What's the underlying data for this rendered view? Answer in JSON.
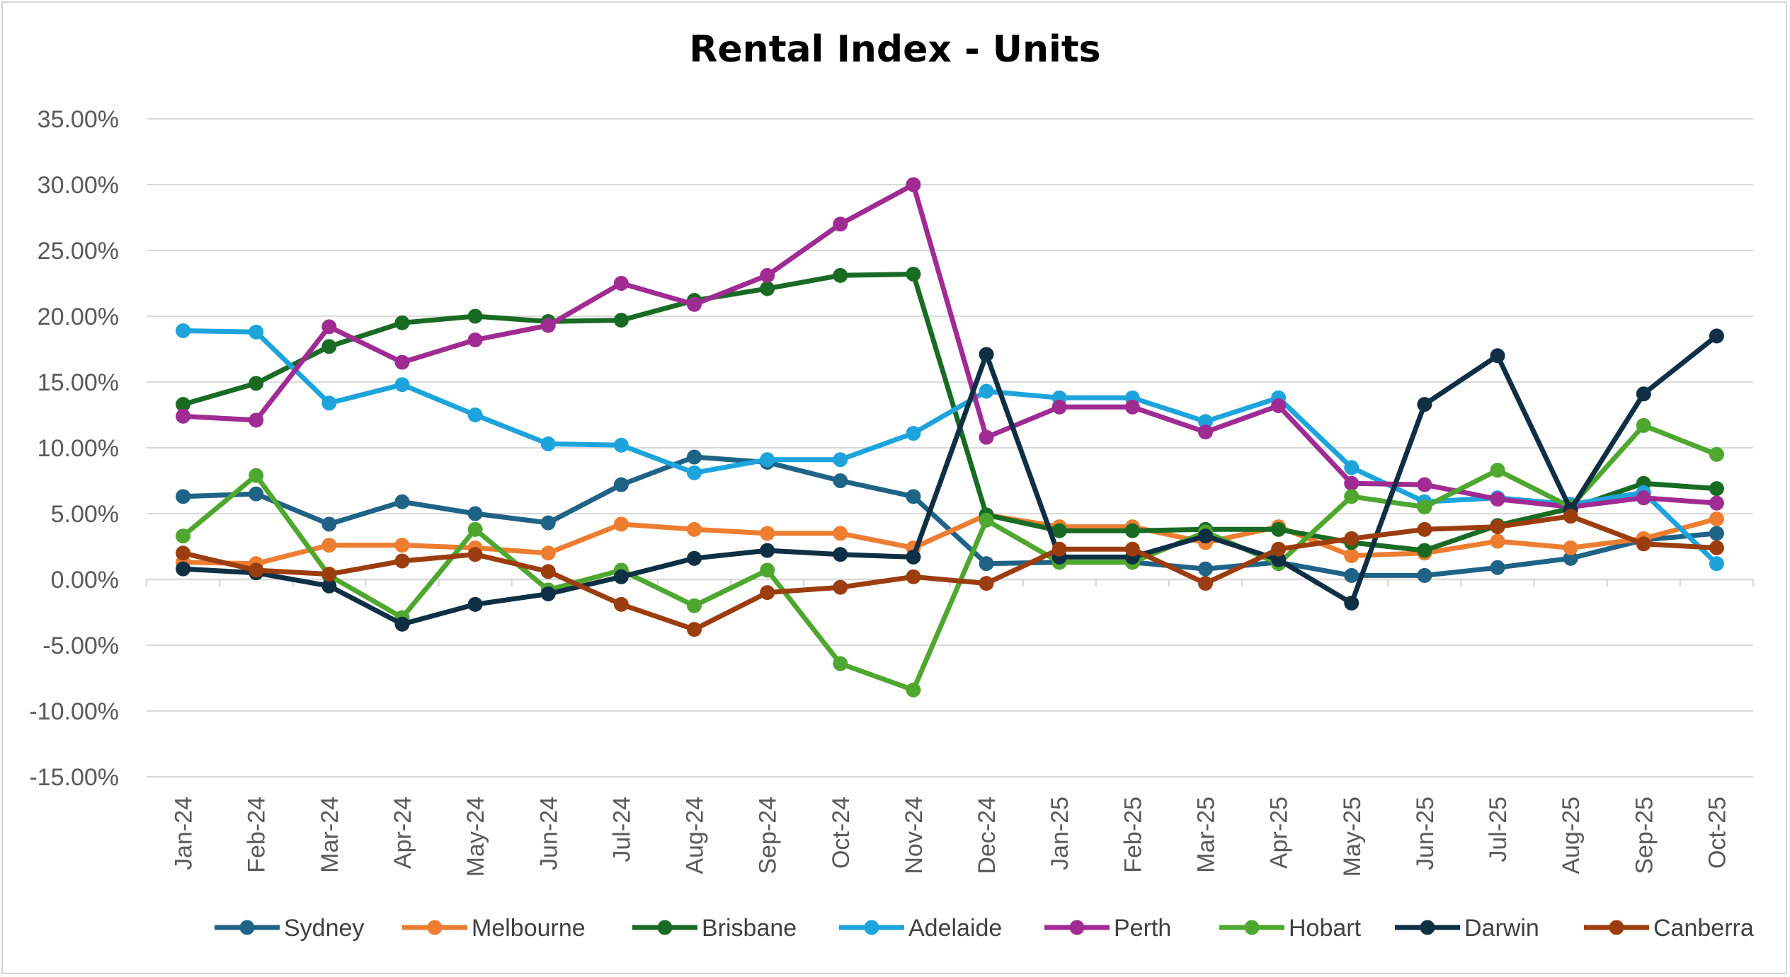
{
  "chart_data": {
    "type": "line",
    "title": "Rental Index - Units",
    "xlabel": "",
    "ylabel": "",
    "ylim": [
      -0.15,
      0.35
    ],
    "ytick_step": 0.05,
    "ytick_labels": [
      "-15.00%",
      "-10.00%",
      "-5.00%",
      "0.00%",
      "5.00%",
      "10.00%",
      "15.00%",
      "20.00%",
      "25.00%",
      "30.00%",
      "35.00%"
    ],
    "grid": true,
    "legend_position": "bottom",
    "categories": [
      "Jan-24",
      "Feb-24",
      "Mar-24",
      "Apr-24",
      "May-24",
      "Jun-24",
      "Jul-24",
      "Aug-24",
      "Sep-24",
      "Oct-24",
      "Nov-24",
      "Dec-24",
      "Jan-25",
      "Feb-25",
      "Mar-25",
      "Apr-25",
      "May-25",
      "Jun-25",
      "Jul-25",
      "Aug-25",
      "Sep-25",
      "Oct-25"
    ],
    "series": [
      {
        "name": "Sydney",
        "color": "#1f6387",
        "values": [
          0.063,
          0.065,
          0.042,
          0.059,
          0.05,
          0.043,
          0.072,
          0.093,
          0.089,
          0.075,
          0.063,
          0.012,
          0.013,
          0.013,
          0.008,
          0.013,
          0.003,
          0.003,
          0.009,
          0.016,
          0.03,
          0.035
        ]
      },
      {
        "name": "Melbourne",
        "color": "#ed7d31",
        "values": [
          0.013,
          0.012,
          0.026,
          0.026,
          0.024,
          0.02,
          0.042,
          0.038,
          0.035,
          0.035,
          0.024,
          0.049,
          0.04,
          0.04,
          0.028,
          0.04,
          0.018,
          0.02,
          0.029,
          0.024,
          0.031,
          0.046
        ]
      },
      {
        "name": "Brisbane",
        "color": "#196b24",
        "values": [
          0.133,
          0.149,
          0.177,
          0.195,
          0.2,
          0.196,
          0.197,
          0.212,
          0.221,
          0.231,
          0.232,
          0.049,
          0.037,
          0.037,
          0.038,
          0.038,
          0.028,
          0.022,
          0.041,
          0.054,
          0.073,
          0.069
        ]
      },
      {
        "name": "Adelaide",
        "color": "#1ea4dc",
        "values": [
          0.189,
          0.188,
          0.134,
          0.148,
          0.125,
          0.103,
          0.102,
          0.081,
          0.091,
          0.091,
          0.111,
          0.143,
          0.138,
          0.138,
          0.12,
          0.138,
          0.085,
          0.059,
          0.062,
          0.057,
          0.066,
          0.012
        ]
      },
      {
        "name": "Perth",
        "color": "#a02b93",
        "values": [
          0.124,
          0.121,
          0.192,
          0.165,
          0.182,
          0.193,
          0.225,
          0.209,
          0.231,
          0.27,
          0.3,
          0.108,
          0.131,
          0.131,
          0.112,
          0.132,
          0.073,
          0.072,
          0.061,
          0.055,
          0.062,
          0.058
        ]
      },
      {
        "name": "Hobart",
        "color": "#4ea72e",
        "values": [
          0.033,
          0.079,
          0.003,
          -0.029,
          0.038,
          -0.008,
          0.007,
          -0.02,
          0.007,
          -0.064,
          -0.084,
          0.045,
          0.013,
          0.013,
          0.036,
          0.012,
          0.063,
          0.055,
          0.083,
          0.055,
          0.117,
          0.095
        ]
      },
      {
        "name": "Darwin",
        "color": "#0e2f44",
        "values": [
          0.008,
          0.005,
          -0.005,
          -0.034,
          -0.019,
          -0.011,
          0.002,
          0.016,
          0.022,
          0.019,
          0.017,
          0.171,
          0.017,
          0.017,
          0.033,
          0.015,
          -0.018,
          0.133,
          0.17,
          0.053,
          0.141,
          0.185
        ]
      },
      {
        "name": "Canberra",
        "color": "#9c3d0f",
        "values": [
          0.02,
          0.007,
          0.004,
          0.014,
          0.019,
          0.006,
          -0.019,
          -0.038,
          -0.01,
          -0.006,
          0.002,
          -0.003,
          0.023,
          0.023,
          -0.003,
          0.023,
          0.031,
          0.038,
          0.04,
          0.048,
          0.027,
          0.024
        ]
      }
    ]
  }
}
